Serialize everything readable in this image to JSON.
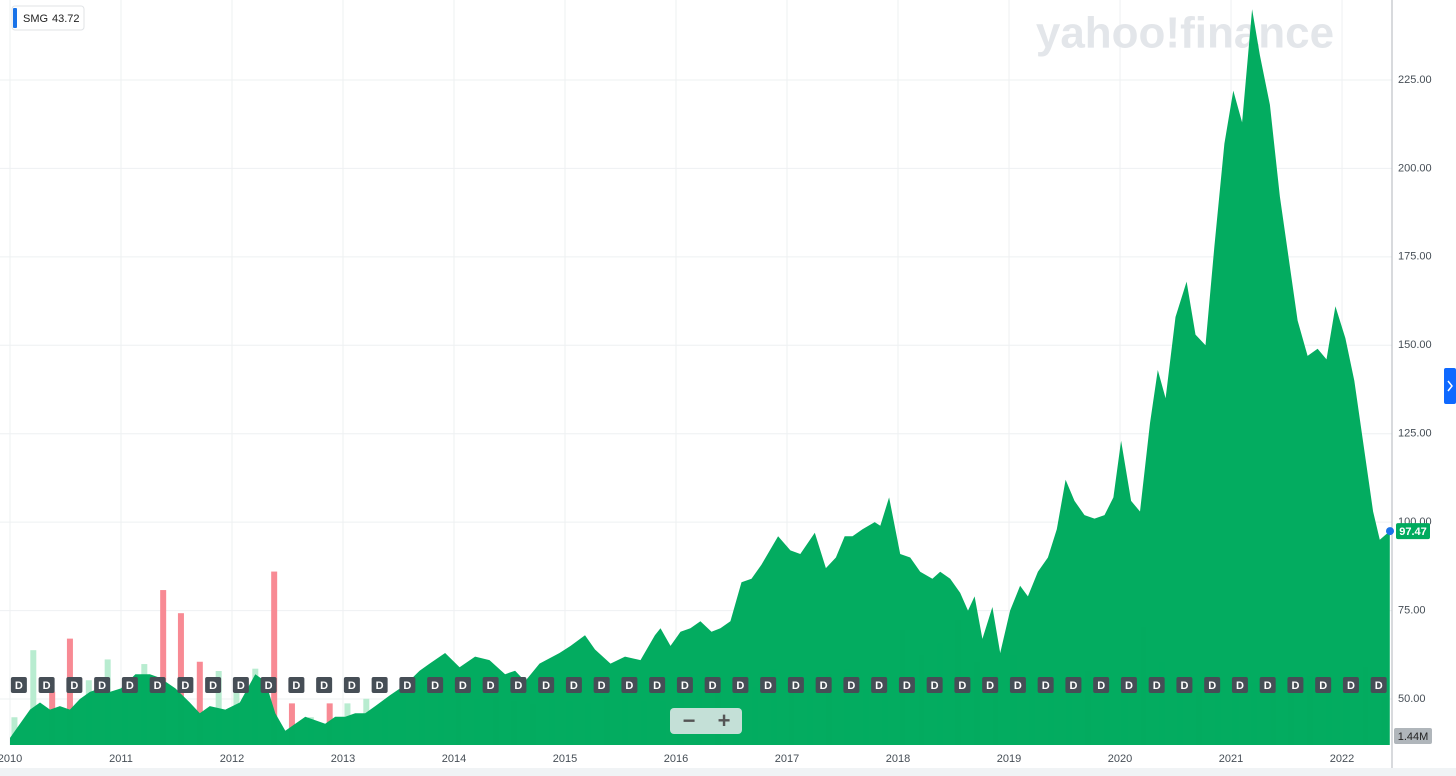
{
  "chart_data": {
    "type": "area",
    "color": "#00ab5e",
    "legend": {
      "name": "SMG",
      "value": 43.72,
      "color": "#1a73e8"
    },
    "watermark": "yahoo!finance",
    "series": [
      {
        "name": "SMG",
        "color": "#00ab5e",
        "x": [
          2010.0,
          2010.09,
          2010.18,
          2010.27,
          2010.36,
          2010.45,
          2010.54,
          2010.63,
          2010.72,
          2010.81,
          2010.9,
          2011.0,
          2011.13,
          2011.26,
          2011.35,
          2011.49,
          2011.62,
          2011.71,
          2011.8,
          2011.94,
          2012.07,
          2012.21,
          2012.3,
          2012.39,
          2012.48,
          2012.57,
          2012.66,
          2012.75,
          2012.84,
          2012.93,
          2013.02,
          2013.11,
          2013.2,
          2013.29,
          2013.42,
          2013.56,
          2013.69,
          2013.78,
          2013.92,
          2014.05,
          2014.19,
          2014.32,
          2014.46,
          2014.55,
          2014.64,
          2014.77,
          2014.95,
          2015.05,
          2015.18,
          2015.27,
          2015.41,
          2015.54,
          2015.68,
          2015.81,
          2015.86,
          2015.95,
          2016.04,
          2016.13,
          2016.22,
          2016.32,
          2016.4,
          2016.49,
          2016.59,
          2016.68,
          2016.77,
          2016.92,
          2017.03,
          2017.12,
          2017.25,
          2017.35,
          2017.44,
          2017.52,
          2017.59,
          2017.68,
          2017.79,
          2017.84,
          2017.92,
          2018.02,
          2018.11,
          2018.2,
          2018.31,
          2018.38,
          2018.47,
          2018.56,
          2018.63,
          2018.69,
          2018.76,
          2018.85,
          2018.92,
          2019.01,
          2019.1,
          2019.17,
          2019.26,
          2019.35,
          2019.43,
          2019.51,
          2019.59,
          2019.68,
          2019.77,
          2019.86,
          2019.94,
          2020.01,
          2020.1,
          2020.18,
          2020.27,
          2020.34,
          2020.41,
          2020.5,
          2020.6,
          2020.68,
          2020.77,
          2020.85,
          2020.94,
          2021.02,
          2021.1,
          2021.19,
          2021.26,
          2021.35,
          2021.44,
          2021.6,
          2021.69,
          2021.78,
          2021.86,
          2021.94,
          2022.03,
          2022.11,
          2022.28,
          2022.34,
          2022.43
        ],
        "values": [
          39,
          43,
          47,
          49,
          47,
          48,
          47,
          50,
          52,
          53,
          52,
          53,
          57,
          57,
          56,
          53,
          49,
          46,
          48,
          47,
          49,
          57,
          55,
          46,
          41,
          43,
          45,
          44,
          43,
          45,
          45,
          46,
          46,
          48,
          51,
          54,
          58,
          60,
          63,
          59,
          62,
          61,
          57,
          58,
          55,
          60,
          63,
          65,
          68,
          64,
          60,
          62,
          61,
          68,
          70,
          65,
          69,
          70,
          72,
          69,
          70,
          72,
          83,
          84,
          88,
          96,
          92,
          91,
          97,
          87,
          90,
          96,
          96,
          98,
          100,
          99,
          107,
          91,
          90,
          86,
          84,
          86,
          84,
          80,
          75,
          79,
          67,
          76,
          63,
          75,
          82,
          79,
          86,
          90,
          98,
          112,
          106,
          102,
          101,
          102,
          107,
          123,
          106,
          103,
          128,
          143,
          135,
          158,
          168,
          153,
          150,
          178,
          207,
          222,
          213,
          245,
          232,
          218,
          192,
          157,
          147,
          149,
          146,
          161,
          152,
          140,
          103,
          95,
          97.47
        ]
      }
    ],
    "last_price": 97.47,
    "last_price_color": "#00ab5e",
    "volume": {
      "color_up": "#b8ecd0",
      "color_down": "#f88a94",
      "vlim": [
        0,
        8
      ],
      "last": {
        "value": 1.44,
        "label": "1.44M"
      },
      "x": [
        2010.04,
        2010.21,
        2010.38,
        2010.54,
        2010.71,
        2010.88,
        2011.04,
        2011.21,
        2011.38,
        2011.54,
        2011.71,
        2011.88,
        2012.04,
        2012.21,
        2012.38,
        2012.54,
        2012.71,
        2012.88,
        2013.04,
        2013.21,
        2013.38,
        2013.54,
        2013.71,
        2013.88,
        2014.04,
        2014.21,
        2014.38,
        2014.54,
        2014.71,
        2014.88,
        2015.04,
        2015.21,
        2015.38,
        2015.54,
        2015.71,
        2015.88,
        2016.04,
        2016.21,
        2016.38,
        2016.54,
        2016.71,
        2016.88,
        2017.04,
        2017.21,
        2017.38,
        2017.54,
        2017.71,
        2017.88,
        2018.04,
        2018.21,
        2018.38,
        2018.54,
        2018.71,
        2018.88,
        2019.04,
        2019.21,
        2019.38,
        2019.54,
        2019.71,
        2019.88,
        2020.04,
        2020.21,
        2020.38,
        2020.54,
        2020.71,
        2020.88,
        2021.04,
        2021.21,
        2021.38,
        2021.54,
        2021.71,
        2021.88,
        2022.04,
        2022.21,
        2022.38
      ],
      "values": [
        1.2,
        4.1,
        2.3,
        4.6,
        2.8,
        3.7,
        2.1,
        3.5,
        6.7,
        5.7,
        3.6,
        3.2,
        2.5,
        3.3,
        7.5,
        1.8,
        1.2,
        1.8,
        1.8,
        2.0,
        1.9,
        2.5,
        2.6,
        2.6,
        2.8,
        2.0,
        2.1,
        1.9,
        1.8,
        2.0,
        1.9,
        1.8,
        2.1,
        2.3,
        1.9,
        1.9,
        2.4,
        2.4,
        2.7,
        3.2,
        2.5,
        3.3,
        2.5,
        2.3,
        3.1,
        3.3,
        2.4,
        2.5,
        5.0,
        3.9,
        4.4,
        5.4,
        3.6,
        3.1,
        3.9,
        2.6,
        2.9,
        2.4,
        3.2,
        2.6,
        2.6,
        5.1,
        3.6,
        2.9,
        2.3,
        2.4,
        2.4,
        2.7,
        2.7,
        2.4,
        3.0,
        2.3,
        2.6,
        3.4,
        2.1
      ]
    },
    "dividends": {
      "label": "D",
      "x": [
        2010.08,
        2010.33,
        2010.58,
        2010.83,
        2011.08,
        2011.33,
        2011.58,
        2011.83,
        2012.08,
        2012.33,
        2012.58,
        2012.83,
        2013.08,
        2013.33,
        2013.58,
        2013.83,
        2014.08,
        2014.33,
        2014.58,
        2014.83,
        2015.08,
        2015.33,
        2015.58,
        2015.83,
        2016.08,
        2016.33,
        2016.58,
        2016.83,
        2017.08,
        2017.33,
        2017.58,
        2017.83,
        2018.08,
        2018.33,
        2018.58,
        2018.83,
        2019.08,
        2019.33,
        2019.58,
        2019.83,
        2020.08,
        2020.33,
        2020.58,
        2020.83,
        2021.08,
        2021.33,
        2021.58,
        2021.83,
        2022.08,
        2022.33
      ]
    },
    "zoom": [
      "−",
      "+"
    ],
    "xlim": [
      2009.91,
      2022.45
    ],
    "xticks": [
      2010,
      2011,
      2012,
      2013,
      2014,
      2015,
      2016,
      2017,
      2018,
      2019,
      2020,
      2021,
      2022
    ],
    "ylim": [
      37,
      247.6
    ],
    "yticks": [
      {
        "value": 50,
        "label": "50.00"
      },
      {
        "value": 75,
        "label": "75.00"
      },
      {
        "value": 100,
        "label": "100.00"
      },
      {
        "value": 125,
        "label": "125.00"
      },
      {
        "value": 150,
        "label": "150.00"
      },
      {
        "value": 175,
        "label": "175.00"
      },
      {
        "value": 200,
        "label": "200.00"
      },
      {
        "value": 225,
        "label": "225.00"
      }
    ],
    "grid": true
  }
}
